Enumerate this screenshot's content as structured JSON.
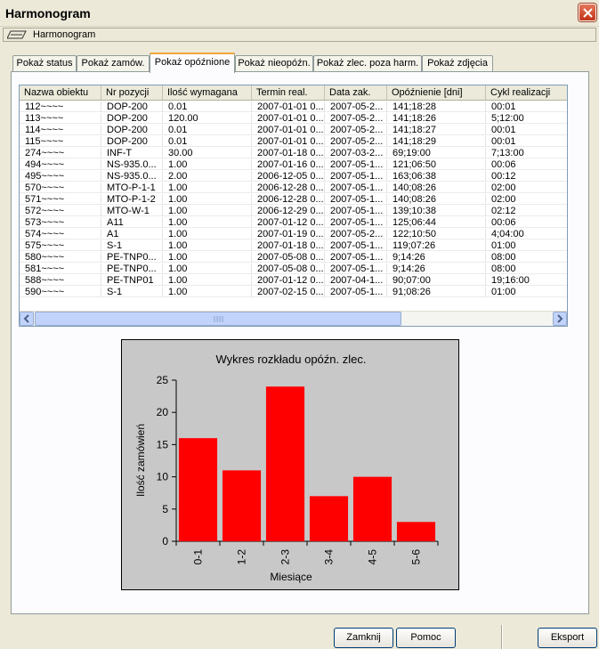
{
  "window": {
    "title": "Harmonogram"
  },
  "document_tab": {
    "label": "Harmonogram"
  },
  "tabs": [
    {
      "label": "Pokaż status",
      "active": false
    },
    {
      "label": "Pokaż zamów.",
      "active": false
    },
    {
      "label": "Pokaż opóźnione",
      "active": true
    },
    {
      "label": "Pokaż nieopóźn.",
      "active": false
    },
    {
      "label": "Pokaż zlec. poza harm.",
      "active": false
    },
    {
      "label": "Pokaż zdjęcia",
      "active": false
    }
  ],
  "table": {
    "columns": [
      "Nazwa obiektu",
      "Nr pozycji",
      "Ilość wymagana",
      "Termin real.",
      "Data zak.",
      "Opóźnienie [dni]",
      "Cykl realizacji"
    ],
    "rows": [
      [
        "112~~~~",
        "DOP-200",
        "0.01",
        "2007-01-01 0...",
        "2007-05-2...",
        "141;18:28",
        "00:01"
      ],
      [
        "113~~~~",
        "DOP-200",
        "120.00",
        "2007-01-01 0...",
        "2007-05-2...",
        "141;18:26",
        "5;12:00"
      ],
      [
        "114~~~~",
        "DOP-200",
        "0.01",
        "2007-01-01 0...",
        "2007-05-2...",
        "141;18:27",
        "00:01"
      ],
      [
        "115~~~~",
        "DOP-200",
        "0.01",
        "2007-01-01 0...",
        "2007-05-2...",
        "141;18:29",
        "00:01"
      ],
      [
        "274~~~~",
        "INF-T",
        "30.00",
        "2007-01-18 0...",
        "2007-03-2...",
        "69;19:00",
        "7;13:00"
      ],
      [
        "494~~~~",
        "NS-935.0...",
        "1.00",
        "2007-01-16 0...",
        "2007-05-1...",
        "121;06:50",
        "00:06"
      ],
      [
        "495~~~~",
        "NS-935.0...",
        "2.00",
        "2006-12-05 0...",
        "2007-05-1...",
        "163;06:38",
        "00:12"
      ],
      [
        "570~~~~",
        "MTO-P-1-1",
        "1.00",
        "2006-12-28 0...",
        "2007-05-1...",
        "140;08:26",
        "02:00"
      ],
      [
        "571~~~~",
        "MTO-P-1-2",
        "1.00",
        "2006-12-28 0...",
        "2007-05-1...",
        "140;08:26",
        "02:00"
      ],
      [
        "572~~~~",
        "MTO-W-1",
        "1.00",
        "2006-12-29 0...",
        "2007-05-1...",
        "139;10:38",
        "02:12"
      ],
      [
        "573~~~~",
        "A11",
        "1.00",
        "2007-01-12 0...",
        "2007-05-1...",
        "125;06:44",
        "00:06"
      ],
      [
        "574~~~~",
        "A1",
        "1.00",
        "2007-01-19 0...",
        "2007-05-2...",
        "122;10:50",
        "4;04:00"
      ],
      [
        "575~~~~",
        "S-1",
        "1.00",
        "2007-01-18 0...",
        "2007-05-1...",
        "119;07:26",
        "01:00"
      ],
      [
        "580~~~~",
        "PE-TNP0...",
        "1.00",
        "2007-05-08 0...",
        "2007-05-1...",
        "9;14:26",
        "08:00"
      ],
      [
        "581~~~~",
        "PE-TNP0...",
        "1.00",
        "2007-05-08 0...",
        "2007-05-1...",
        "9;14:26",
        "08:00"
      ],
      [
        "588~~~~",
        "PE-TNP01",
        "1.00",
        "2007-01-12 0...",
        "2007-04-1...",
        "90;07:00",
        "19;16:00"
      ],
      [
        "590~~~~",
        "S-1",
        "1.00",
        "2007-02-15 0...",
        "2007-05-1...",
        "91;08:26",
        "01:00"
      ]
    ]
  },
  "chart_data": {
    "type": "bar",
    "title": "Wykres rozkładu opóźn. zlec.",
    "xlabel": "Miesiące",
    "ylabel": "Ilość zamówień",
    "categories": [
      "0-1",
      "1-2",
      "2-3",
      "3-4",
      "4-5",
      "5-6"
    ],
    "values": [
      16,
      11,
      24,
      7,
      10,
      3
    ],
    "ylim": [
      0,
      25
    ],
    "yticks": [
      "0",
      "5",
      "10",
      "15",
      "20",
      "25"
    ],
    "bar_color": "#ff0000",
    "background_color": "#c8c8c8",
    "grid": false
  },
  "buttons": {
    "close": "Zamknij",
    "help": "Pomoc",
    "export": "Eksport"
  },
  "colors": {
    "active_tab_accent": "#f2a53a",
    "close_button": "#d65a3a"
  }
}
